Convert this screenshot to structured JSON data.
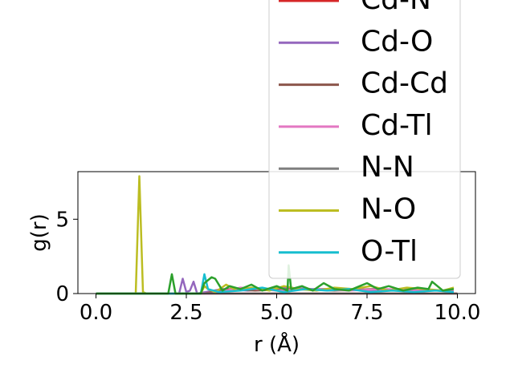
{
  "chart_data": {
    "type": "line",
    "title": "",
    "xlabel": "r (Å)",
    "ylabel": "g(r)",
    "xlim": [
      -0.5,
      10.5
    ],
    "ylim": [
      0,
      8.2
    ],
    "xticks": [
      0.0,
      2.5,
      5.0,
      7.5,
      10.0
    ],
    "xtick_labels": [
      "0.0",
      "2.5",
      "5.0",
      "7.5",
      "10.0"
    ],
    "yticks": [
      0,
      5
    ],
    "ytick_labels": [
      "0",
      "5"
    ],
    "grid": false,
    "legend_placement": "top-right",
    "series": [
      {
        "name": "Cd-N",
        "color": "#d62728",
        "x": [
          0,
          10
        ],
        "y": [
          0,
          0
        ]
      },
      {
        "name": "Cd-O",
        "color": "#9467bd",
        "x": [
          0,
          2.3,
          2.4,
          2.5,
          2.6,
          2.7,
          2.8,
          3.5,
          4.2,
          5.2,
          6.0,
          6.8,
          7.6,
          8.4,
          9.2,
          9.9
        ],
        "y": [
          0,
          0,
          1.0,
          0.1,
          0.2,
          0.8,
          0,
          0.3,
          0.2,
          0.4,
          0.3,
          0.3,
          0.2,
          0.3,
          0.2,
          0.2
        ]
      },
      {
        "name": "Cd-Cd",
        "color": "#8c564b",
        "x": [
          0,
          3.0,
          3.6,
          4.4,
          5.5,
          6.6,
          7.7,
          8.8,
          9.9
        ],
        "y": [
          0,
          0,
          0.3,
          0.2,
          0.3,
          0.2,
          0.3,
          0.2,
          0.2
        ]
      },
      {
        "name": "Cd-Tl",
        "color": "#e377c2",
        "x": [
          0,
          3.2,
          4.0,
          5.0,
          6.0,
          7.0,
          8.0,
          9.0,
          9.9
        ],
        "y": [
          0,
          0,
          0.4,
          0.2,
          0.3,
          0.2,
          0.3,
          0.2,
          0.2
        ]
      },
      {
        "name": "N-N",
        "color": "#7f7f7f",
        "x": [
          0,
          10
        ],
        "y": [
          0,
          0
        ]
      },
      {
        "name": "N-O",
        "color": "#bcbd22",
        "x": [
          0,
          1.1,
          1.2,
          1.3,
          1.4,
          2.9,
          3.0,
          3.1,
          3.3,
          3.6,
          3.9,
          4.3,
          4.8,
          5.2,
          5.6,
          6.1,
          6.6,
          7.1,
          7.6,
          8.1,
          8.6,
          9.1,
          9.6,
          9.9
        ],
        "y": [
          0,
          0,
          7.9,
          0.1,
          0,
          0,
          0.5,
          0.3,
          0.1,
          0.6,
          0.2,
          0.4,
          0.2,
          0.5,
          0.3,
          0.2,
          0.4,
          0.3,
          0.5,
          0.2,
          0.4,
          0.3,
          0.2,
          0.4
        ]
      },
      {
        "name": "O-Tl",
        "color": "#17becf",
        "x": [
          0,
          2.9,
          3.0,
          3.1,
          3.4,
          4.0,
          4.6,
          5.2,
          5.8,
          6.4,
          7.0,
          7.6,
          8.2,
          8.8,
          9.4,
          9.9
        ],
        "y": [
          0,
          0,
          1.3,
          0.3,
          0.1,
          0.2,
          0.4,
          0.1,
          0.3,
          0.2,
          0.3,
          0.1,
          0.2,
          0.1,
          0.2,
          0.1
        ]
      },
      {
        "name": "",
        "color": "#2ca02c",
        "x": [
          0,
          2.0,
          2.1,
          2.2,
          2.9,
          3.0,
          3.2,
          3.3,
          3.5,
          3.7,
          4.0,
          4.3,
          4.6,
          5.0,
          5.3,
          5.33,
          5.4,
          5.7,
          6.0,
          6.3,
          6.6,
          7.0,
          7.3,
          7.5,
          7.8,
          8.1,
          8.5,
          8.9,
          9.2,
          9.3,
          9.6,
          9.9
        ],
        "y": [
          0,
          0,
          1.3,
          0,
          0,
          0.7,
          1.1,
          1.0,
          0.2,
          0.5,
          0.3,
          0.6,
          0.2,
          0.5,
          0.2,
          1.9,
          0.3,
          0.5,
          0.2,
          0.7,
          0.3,
          0.2,
          0.5,
          0.7,
          0.3,
          0.5,
          0.2,
          0.4,
          0.3,
          0.8,
          0.2,
          0.3
        ]
      }
    ]
  }
}
